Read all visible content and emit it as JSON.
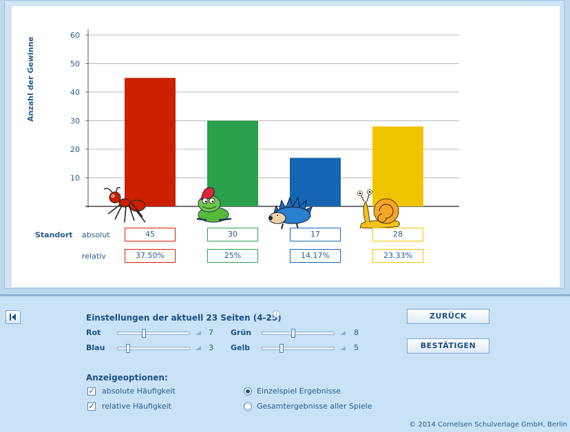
{
  "chart_data": {
    "type": "bar",
    "categories": [
      "Rot",
      "Grün",
      "Blau",
      "Gelb"
    ],
    "values": [
      45,
      30,
      17,
      28
    ],
    "colors": [
      "#cc1f00",
      "#2aa04a",
      "#1565b2",
      "#f0c400"
    ],
    "ylabel": "Anzahl der Gewinne",
    "ylim": [
      0,
      60
    ],
    "yticks": [
      "10",
      "20",
      "30",
      "40",
      "50",
      "60"
    ],
    "grid": true,
    "mascots": [
      "ant-icon",
      "frog-icon",
      "hedgehog-icon",
      "snail-icon"
    ]
  },
  "table": {
    "row_title": "Standort",
    "absolut_label": "absolut",
    "relativ_label": "relativ",
    "absolut": [
      "45",
      "30",
      "17",
      "28"
    ],
    "relativ": [
      "37.50%",
      "25%",
      "14.17%",
      "23.33%"
    ]
  },
  "settings": {
    "title": "Einstellungen der aktuell 23 Seiten (4-25)",
    "info_icon": "info-icon",
    "sliders": [
      {
        "label": "Rot",
        "value": "7",
        "fraction": 0.35
      },
      {
        "label": "Blau",
        "value": "3",
        "fraction": 0.12
      },
      {
        "label": "Grün",
        "value": "8",
        "fraction": 0.42
      },
      {
        "label": "Gelb",
        "value": "5",
        "fraction": 0.25
      }
    ]
  },
  "buttons": {
    "back": "ZURÜCK",
    "confirm": "BESTÄTIGEN"
  },
  "display": {
    "title": "Anzeigeoptionen:",
    "absolute": "absolute Häufigkeit",
    "relative": "relative Häufigkeit",
    "absolute_checked": true,
    "relative_checked": true,
    "single": "Einzelspiel Ergebnisse",
    "total": "Gesamtergebnisse aller Spiele",
    "selected_mode": "single"
  },
  "footer": "© 2014 Cornelsen Schulverlage GmbH, Berlin",
  "colors": {
    "accent": "#1e4f85",
    "panel": "#c9e2f5"
  }
}
